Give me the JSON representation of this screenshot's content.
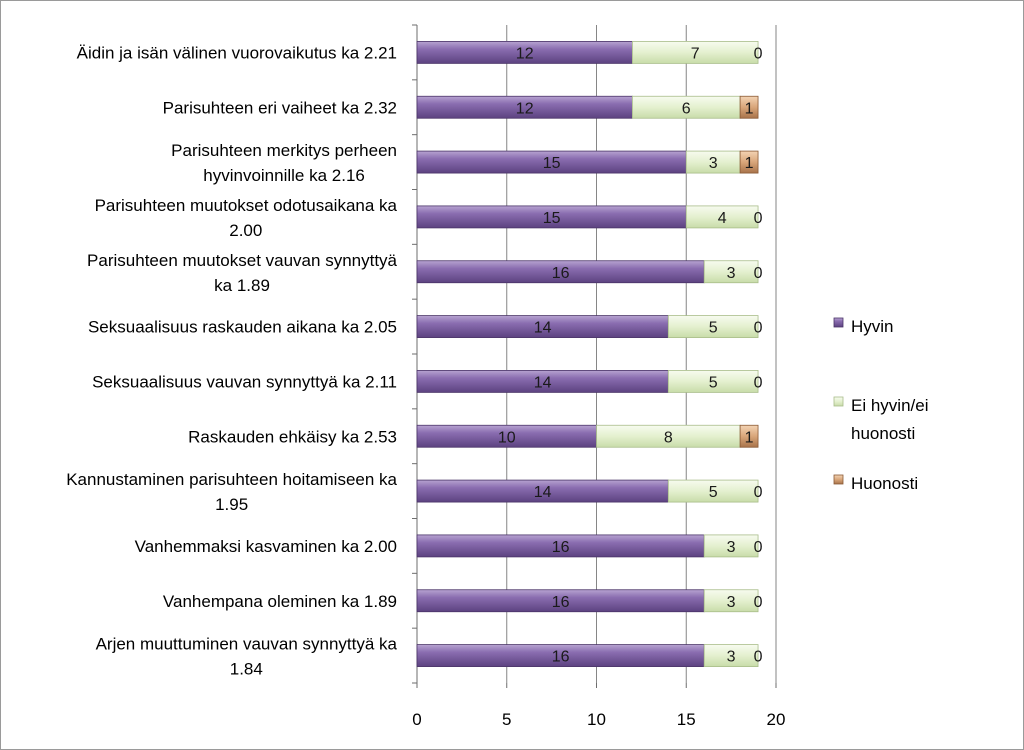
{
  "chart_data": {
    "type": "bar",
    "orientation": "horizontal",
    "stacked": true,
    "categories": [
      [
        "Äidin ja isän välinen vuorovaikutus ka 2.21"
      ],
      [
        "Parisuhteen eri vaiheet ka 2.32"
      ],
      [
        "Parisuhteen merkitys perheen",
        "hyvinvoinnille ka 2.16"
      ],
      [
        "Parisuhteen muutokset odotusaikana ka",
        "2.00"
      ],
      [
        "Parisuhteen muutokset vauvan synnyttyä",
        "ka 1.89"
      ],
      [
        "Seksuaalisuus raskauden aikana ka 2.05"
      ],
      [
        "Seksuaalisuus vauvan synnyttyä ka 2.11"
      ],
      [
        "Raskauden ehkäisy ka 2.53"
      ],
      [
        "Kannustaminen parisuhteen hoitamiseen ka",
        "1.95"
      ],
      [
        "Vanhemmaksi kasvaminen ka 2.00"
      ],
      [
        "Vanhempana oleminen ka 1.89"
      ],
      [
        "Arjen muuttuminen vauvan synnyttyä ka",
        "1.84"
      ]
    ],
    "series": [
      {
        "name": "Hyvin",
        "color": "#7a5c9e",
        "values": [
          12,
          12,
          15,
          15,
          16,
          14,
          14,
          10,
          14,
          16,
          16,
          16
        ]
      },
      {
        "name": "Ei hyvin/ei huonosti",
        "color": "#e4f0cf",
        "values": [
          7,
          6,
          3,
          4,
          3,
          5,
          5,
          8,
          5,
          3,
          3,
          3
        ]
      },
      {
        "name": "Huonosti",
        "color": "#d9a67a",
        "values": [
          0,
          1,
          1,
          0,
          0,
          0,
          0,
          1,
          0,
          0,
          0,
          0
        ]
      }
    ],
    "legend": {
      "position": "right",
      "entries": [
        [
          "Hyvin"
        ],
        [
          "Ei hyvin/ei",
          "huonosti"
        ],
        [
          "Huonosti"
        ]
      ]
    },
    "xlim": [
      0,
      20
    ],
    "xticks": [
      0,
      5,
      10,
      15,
      20
    ],
    "grid": {
      "vertical": true,
      "color": "#868686"
    },
    "title": "",
    "xlabel": "",
    "ylabel": ""
  }
}
